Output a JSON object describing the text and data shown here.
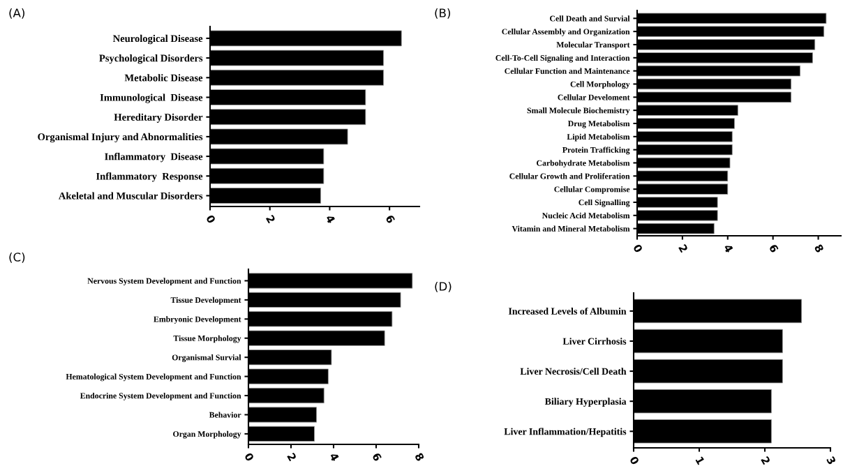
{
  "chart_data": [
    {
      "type": "bar",
      "title": "(A)",
      "orientation": "horizontal",
      "color": "#000000",
      "xlim": [
        0,
        7
      ],
      "xticks": [
        0,
        2,
        4,
        6
      ],
      "grid": false,
      "legend": false,
      "categories": [
        "Neurological Disease",
        "Psychological Disorders",
        "Metabolic Disease",
        "Immunological  Disease",
        "Hereditary Disorder",
        "Organismal Injury and Abnormalities",
        "Inflammatory  Disease",
        "Inflammatory  Response",
        "Akeletal and Muscular Disorders"
      ],
      "values": [
        6.4,
        5.8,
        5.8,
        5.2,
        5.2,
        4.6,
        3.8,
        3.8,
        3.7
      ]
    },
    {
      "type": "bar",
      "title": "(B)",
      "orientation": "horizontal",
      "color": "#000000",
      "xlim": [
        0,
        9
      ],
      "xticks": [
        0,
        2,
        4,
        6,
        8
      ],
      "grid": false,
      "legend": false,
      "categories": [
        "Cell Death and Survial",
        "Cellular Assembly and Organization",
        "Molecular Transport",
        "Cell-To-Cell Signaling and Interaction",
        "Cellular Function and Maintenance",
        "Cell Morphology",
        "Cellular Develoment",
        "Small Molecule Biochemistry",
        "Drug Metabolism",
        "Lipid Metabolism",
        "Protein Trafficking",
        "Carbohydrate Metabolism",
        "Cellular Growth and Proliferation",
        "Cellular Compromise",
        "Cell Signalling",
        "Nucleic Acid Metabolism",
        "Vitamin and Mineral Metabolism"
      ],
      "values": [
        8.35,
        8.25,
        7.85,
        7.75,
        7.2,
        6.8,
        6.8,
        4.45,
        4.3,
        4.2,
        4.2,
        4.1,
        4.0,
        4.0,
        3.55,
        3.55,
        3.4
      ]
    },
    {
      "type": "bar",
      "title": "(C)",
      "orientation": "horizontal",
      "color": "#000000",
      "xlim": [
        0,
        8
      ],
      "xticks": [
        0,
        2,
        4,
        6,
        8
      ],
      "grid": false,
      "legend": false,
      "categories": [
        "Nervous System Development and Function",
        "Tissue Development",
        "Embryonic Development",
        "Tissue Morphology",
        "Organismal Survial",
        "Hematological System Development and Function",
        "Endocrine System Development and Function",
        "Behavior",
        "Organ Morphology"
      ],
      "values": [
        7.7,
        7.15,
        6.75,
        6.4,
        3.9,
        3.75,
        3.55,
        3.2,
        3.1
      ]
    },
    {
      "type": "bar",
      "title": "(D)",
      "orientation": "horizontal",
      "color": "#000000",
      "xlim": [
        0,
        3
      ],
      "xticks": [
        0,
        1,
        2,
        3
      ],
      "grid": false,
      "legend": false,
      "categories": [
        "Increased Levels of Albumin",
        "Liver Cirrhosis",
        "Liver Necrosis/Cell Death",
        "Biliary Hyperplasia",
        "Liver Inflammation/Hepatitis"
      ],
      "values": [
        2.56,
        2.27,
        2.27,
        2.1,
        2.1
      ]
    }
  ]
}
